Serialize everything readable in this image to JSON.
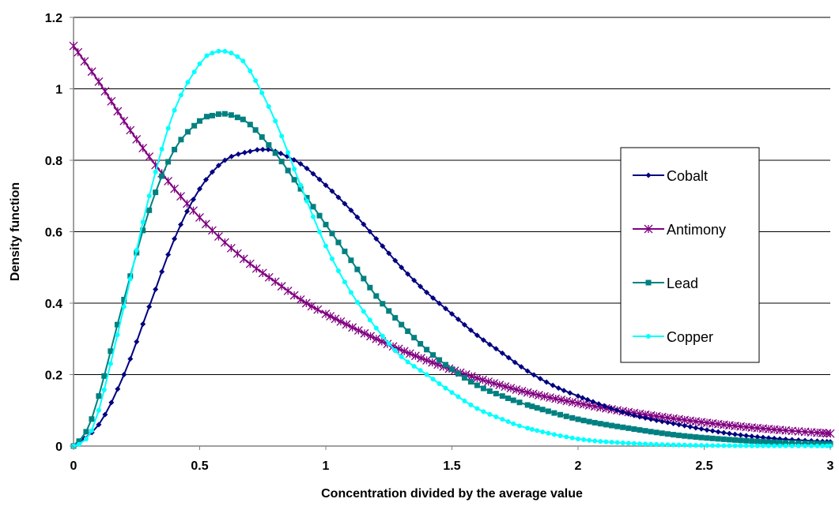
{
  "chart_data": {
    "type": "line",
    "title": "",
    "xlabel": "Concentration divided by the average value",
    "ylabel": "Density function",
    "xlim": [
      0,
      3
    ],
    "ylim": [
      0,
      1.2
    ],
    "x_ticks": [
      "0",
      "0.5",
      "1",
      "1.5",
      "2",
      "2.5",
      "3"
    ],
    "y_ticks": [
      "0",
      "0.2",
      "0.4",
      "0.6",
      "0.8",
      "1",
      "1.2"
    ],
    "grid": "horizontal",
    "legend_position": "right",
    "series": [
      {
        "name": "Cobalt",
        "color": "#000080",
        "marker": "diamond",
        "x": [
          0,
          0.1,
          0.2,
          0.3,
          0.4,
          0.5,
          0.6,
          0.7,
          0.75,
          0.8,
          0.9,
          1.0,
          1.1,
          1.2,
          1.3,
          1.4,
          1.5,
          1.6,
          1.7,
          1.8,
          1.9,
          2.0,
          2.2,
          2.4,
          2.6,
          2.8,
          3.0
        ],
        "y": [
          0,
          0.06,
          0.2,
          0.39,
          0.58,
          0.72,
          0.8,
          0.825,
          0.83,
          0.825,
          0.79,
          0.73,
          0.66,
          0.58,
          0.5,
          0.43,
          0.37,
          0.31,
          0.26,
          0.21,
          0.17,
          0.14,
          0.09,
          0.06,
          0.035,
          0.02,
          0.012
        ]
      },
      {
        "name": "Antimony",
        "color": "#800080",
        "marker": "star",
        "x": [
          0,
          0.1,
          0.2,
          0.3,
          0.4,
          0.5,
          0.6,
          0.7,
          0.8,
          0.9,
          1.0,
          1.2,
          1.4,
          1.6,
          1.8,
          2.0,
          2.2,
          2.4,
          2.6,
          2.8,
          3.0
        ],
        "y": [
          1.12,
          1.02,
          0.91,
          0.81,
          0.72,
          0.64,
          0.57,
          0.51,
          0.46,
          0.41,
          0.37,
          0.3,
          0.24,
          0.19,
          0.15,
          0.12,
          0.095,
          0.075,
          0.058,
          0.045,
          0.035
        ]
      },
      {
        "name": "Lead",
        "color": "#008080",
        "marker": "square",
        "x": [
          0,
          0.05,
          0.1,
          0.2,
          0.3,
          0.4,
          0.5,
          0.55,
          0.6,
          0.65,
          0.7,
          0.8,
          0.9,
          1.0,
          1.1,
          1.2,
          1.3,
          1.4,
          1.5,
          1.6,
          1.7,
          1.8,
          2.0,
          2.2,
          2.4,
          2.6,
          2.8,
          3.0
        ],
        "y": [
          0,
          0.04,
          0.14,
          0.41,
          0.66,
          0.83,
          0.91,
          0.925,
          0.93,
          0.92,
          0.9,
          0.82,
          0.72,
          0.62,
          0.52,
          0.42,
          0.34,
          0.27,
          0.215,
          0.17,
          0.14,
          0.115,
          0.075,
          0.05,
          0.03,
          0.018,
          0.01,
          0.006
        ]
      },
      {
        "name": "Copper",
        "color": "#00FFFF",
        "marker": "circle",
        "x": [
          0,
          0.05,
          0.1,
          0.2,
          0.3,
          0.4,
          0.5,
          0.55,
          0.6,
          0.65,
          0.7,
          0.8,
          0.9,
          1.0,
          1.1,
          1.2,
          1.3,
          1.4,
          1.5,
          1.6,
          1.7,
          1.8,
          2.0,
          2.2,
          2.4,
          2.6,
          2.8,
          3.0
        ],
        "y": [
          0,
          0.02,
          0.1,
          0.39,
          0.7,
          0.94,
          1.07,
          1.1,
          1.105,
          1.09,
          1.05,
          0.91,
          0.73,
          0.56,
          0.43,
          0.33,
          0.25,
          0.2,
          0.15,
          0.105,
          0.075,
          0.05,
          0.02,
          0.008,
          0.003,
          0.001,
          0.0005,
          0.0002
        ]
      }
    ]
  }
}
